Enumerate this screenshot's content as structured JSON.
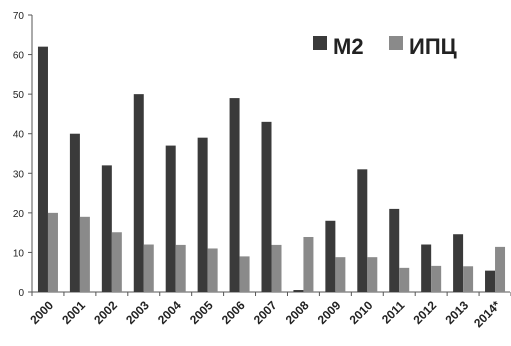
{
  "chart_data": {
    "type": "bar",
    "title": "",
    "xlabel": "",
    "ylabel": "",
    "ylim": [
      0,
      70
    ],
    "yticks": [
      0,
      10,
      20,
      30,
      40,
      50,
      60,
      70
    ],
    "grid": false,
    "legend_position": "top-right",
    "categories": [
      "2000",
      "2001",
      "2002",
      "2003",
      "2004",
      "2005",
      "2006",
      "2007",
      "2008",
      "2009",
      "2010",
      "2011",
      "2012",
      "2013",
      "2014*"
    ],
    "series": [
      {
        "name": "М2",
        "color": "#3a3a3a",
        "values": [
          62,
          40,
          32,
          50,
          37,
          39,
          49,
          43,
          0.5,
          18,
          31,
          21,
          12,
          14.6,
          5.4
        ]
      },
      {
        "name": "ИПЦ",
        "color": "#8a8a8a",
        "values": [
          20,
          19,
          15.1,
          12,
          11.9,
          11,
          9,
          11.9,
          13.9,
          8.8,
          8.8,
          6.1,
          6.6,
          6.5,
          11.4
        ]
      }
    ]
  }
}
